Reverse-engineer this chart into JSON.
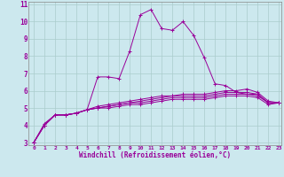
{
  "xlabel": "Windchill (Refroidissement éolien,°C)",
  "bg_color": "#cce8ee",
  "grid_color": "#aacccc",
  "line_color": "#990099",
  "spine_color": "#888888",
  "xlim": [
    -0.5,
    23.2
  ],
  "ylim": [
    2.85,
    11.15
  ],
  "xticks": [
    0,
    1,
    2,
    3,
    4,
    5,
    6,
    7,
    8,
    9,
    10,
    11,
    12,
    13,
    14,
    15,
    16,
    17,
    18,
    19,
    20,
    21,
    22,
    23
  ],
  "yticks": [
    3,
    4,
    5,
    6,
    7,
    8,
    9,
    10,
    11
  ],
  "series": [
    [
      3.0,
      4.1,
      4.6,
      4.6,
      4.7,
      4.9,
      6.8,
      6.8,
      6.7,
      8.3,
      10.4,
      10.7,
      9.6,
      9.5,
      10.0,
      9.2,
      7.9,
      6.4,
      6.3,
      5.9,
      5.8,
      5.8,
      5.3,
      5.3
    ],
    [
      3.0,
      4.0,
      4.6,
      4.6,
      4.7,
      4.9,
      5.1,
      5.2,
      5.3,
      5.4,
      5.5,
      5.6,
      5.7,
      5.7,
      5.8,
      5.8,
      5.8,
      5.9,
      6.0,
      6.0,
      6.1,
      5.9,
      5.4,
      5.3
    ],
    [
      3.0,
      4.0,
      4.6,
      4.6,
      4.7,
      4.9,
      5.0,
      5.1,
      5.2,
      5.3,
      5.4,
      5.5,
      5.6,
      5.7,
      5.7,
      5.7,
      5.7,
      5.8,
      5.9,
      5.9,
      5.9,
      5.8,
      5.3,
      5.3
    ],
    [
      3.0,
      4.0,
      4.6,
      4.6,
      4.7,
      4.9,
      5.0,
      5.1,
      5.2,
      5.3,
      5.3,
      5.4,
      5.5,
      5.6,
      5.6,
      5.6,
      5.6,
      5.7,
      5.8,
      5.8,
      5.8,
      5.7,
      5.3,
      5.3
    ],
    [
      3.0,
      4.0,
      4.6,
      4.6,
      4.7,
      4.9,
      5.0,
      5.0,
      5.1,
      5.2,
      5.2,
      5.3,
      5.4,
      5.5,
      5.5,
      5.5,
      5.5,
      5.6,
      5.7,
      5.7,
      5.7,
      5.6,
      5.2,
      5.3
    ]
  ]
}
